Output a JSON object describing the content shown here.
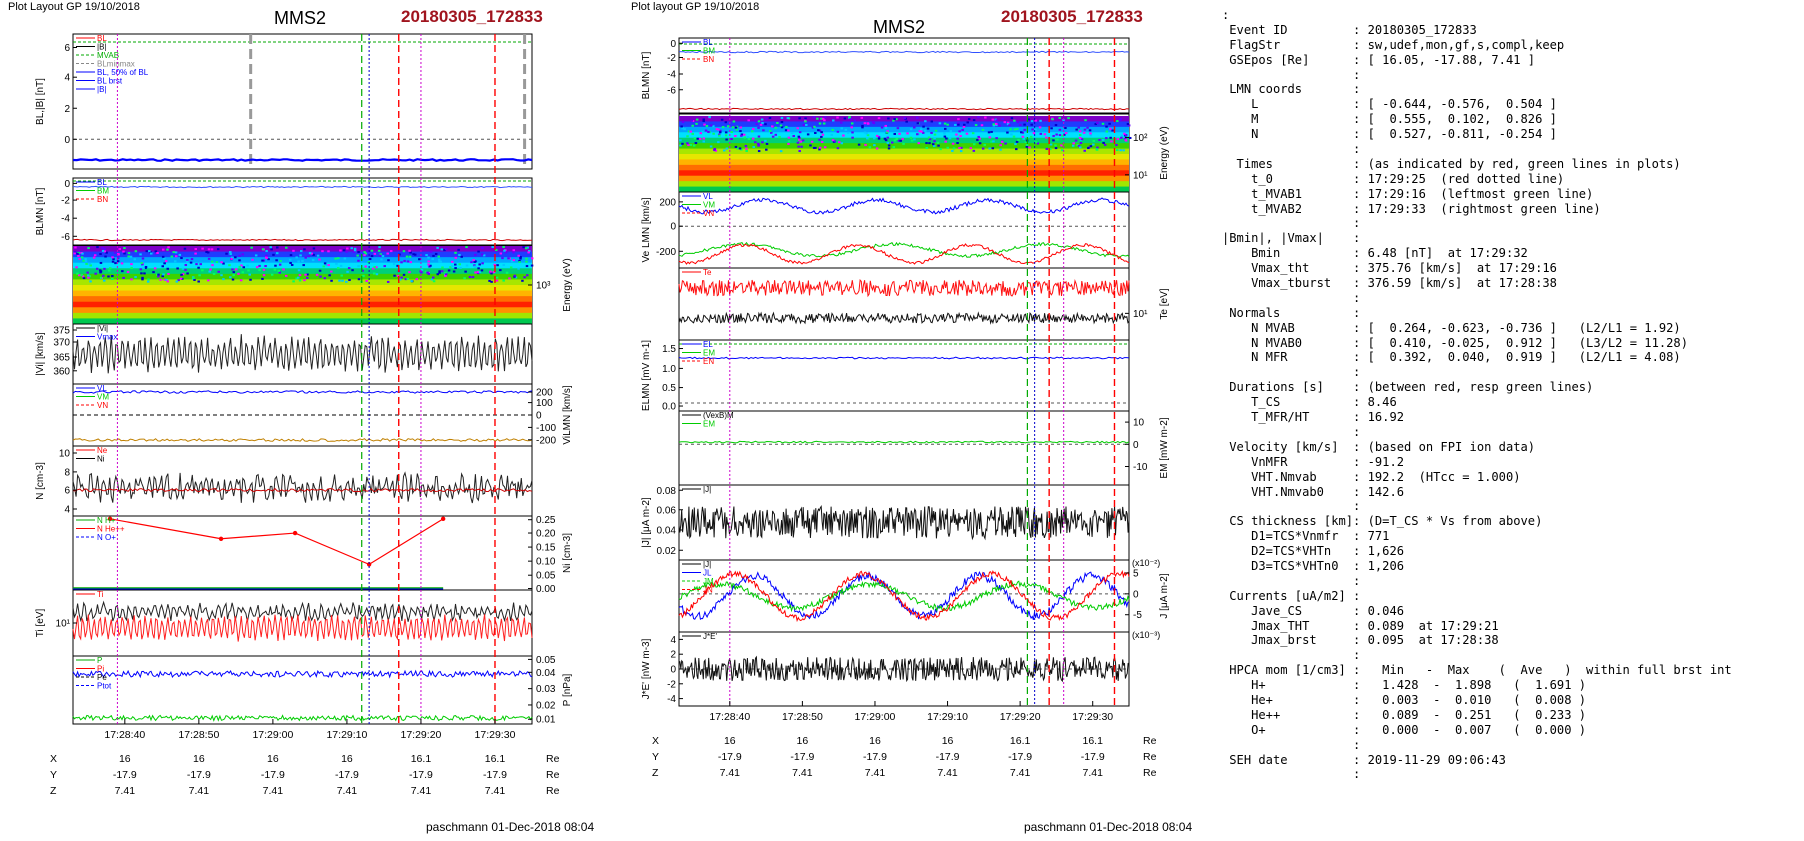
{
  "left": {
    "header": "Plot Layout GP 19/10/2018",
    "title": "MMS2",
    "event": "20180305_172833",
    "footer": "paschmann 01-Dec-2018 08:04",
    "time_ticks": [
      "17:28:40",
      "17:28:50",
      "17:29:00",
      "17:29:10",
      "17:29:20",
      "17:29:30"
    ],
    "pos_rows": [
      {
        "label": "X",
        "values": [
          "16",
          "16",
          "16",
          "16",
          "16.1",
          "16.1"
        ],
        "unit": "Re"
      },
      {
        "label": "Y",
        "values": [
          "-17.9",
          "-17.9",
          "-17.9",
          "-17.9",
          "-17.9",
          "-17.9"
        ],
        "unit": "Re"
      },
      {
        "label": "Z",
        "values": [
          "7.41",
          "7.41",
          "7.41",
          "7.41",
          "7.41",
          "7.41"
        ],
        "unit": "Re"
      }
    ]
  },
  "mid": {
    "header": "Plot layout GP 19/10/2018",
    "title": "MMS2",
    "event": "20180305_172833",
    "footer": "paschmann 01-Dec-2018 08:04",
    "time_ticks": [
      "17:28:40",
      "17:28:50",
      "17:29:00",
      "17:29:10",
      "17:29:20",
      "17:29:30"
    ],
    "pos_rows": [
      {
        "label": "X",
        "values": [
          "16",
          "16",
          "16",
          "16",
          "16.1",
          "16.1"
        ],
        "unit": "Re"
      },
      {
        "label": "Y",
        "values": [
          "-17.9",
          "-17.9",
          "-17.9",
          "-17.9",
          "-17.9",
          "-17.9"
        ],
        "unit": "Re"
      },
      {
        "label": "Z",
        "values": [
          "7.41",
          "7.41",
          "7.41",
          "7.41",
          "7.41",
          "7.41"
        ],
        "unit": "Re"
      }
    ]
  },
  "info_lines": [
    ":",
    " Event ID         : 20180305_172833",
    " FlagStr          : sw,udef,mon,gf,s,compl,keep",
    " GSEpos [Re]      : [ 16.05, -17.88, 7.41 ]",
    "                  :",
    " LMN coords       :",
    "    L             : [ -0.644, -0.576,  0.504 ]",
    "    M             : [  0.555,  0.102,  0.826 ]",
    "    N             : [  0.527, -0.811, -0.254 ]",
    "                  :",
    "  Times           : (as indicated by red, green lines in plots)",
    "    t_0           : 17:29:25  (red dotted line)",
    "    t_MVAB1       : 17:29:16  (leftmost green line)",
    "    t_MVAB2       : 17:29:33  (rightmost green line)",
    "                  :",
    "|Bmin|, |Vmax|    :",
    "    Bmin          : 6.48 [nT]  at 17:29:32",
    "    Vmax_tht      : 375.76 [km/s]  at 17:29:16",
    "    Vmax_tburst   : 376.59 [km/s]  at 17:28:38",
    "                  :",
    " Normals          :",
    "    N MVAB        : [  0.264, -0.623, -0.736 ]   (L2/L1 = 1.92)",
    "    N MVAB0       : [  0.410, -0.025,  0.912 ]   (L3/L2 = 11.28)",
    "    N MFR         : [  0.392,  0.040,  0.919 ]   (L2/L1 = 4.08)",
    "                  :",
    " Durations [s]    : (between red, resp green lines)",
    "    T_CS          : 8.46",
    "    T_MFR/HT      : 16.92",
    "                  :",
    " Velocity [km/s]  : (based on FPI ion data)",
    "    VnMFR         : -91.2",
    "    VHT.Nmvab     : 192.2  (HTcc = 1.000)",
    "    VHT.Nmvab0    : 142.6",
    "                  :",
    " CS thickness [km]: (D=T_CS * Vs from above)",
    "    D1=TCS*Vnmfr  : 771",
    "    D2=TCS*VHTn   : 1,626",
    "    D3=TCS*VHTn0  : 1,206",
    "                  :",
    " Currents [uA/m2] :",
    "    Jave_CS       : 0.046",
    "    Jmax_THT      : 0.089  at 17:29:21",
    "    Jmax_brst     : 0.095  at 17:28:38",
    "                  :",
    " HPCA mom [1/cm3] :   Min   -  Max    (  Ave   )  within full brst int",
    "    H+            :   1.428  -  1.898   (  1.691 )",
    "    He+           :   0.003  -  0.010   (  0.008 )",
    "    He++          :   0.089  -  0.251   (  0.233 )",
    "    O+            :   0.000  -  0.007   (  0.000 )",
    "                  :",
    " SEH date         : 2019-11-29 09:06:43",
    "                  :"
  ],
  "chart_data": [
    {
      "type": "line",
      "title": "MMS2",
      "x_range": [
        "17:28:33",
        "17:29:35"
      ],
      "panels": [
        {
          "ylabel": "BL,|B| [nT]",
          "ylim": [
            -1,
            6.5
          ],
          "ticks": [
            "6",
            "4",
            "2",
            "0"
          ],
          "legend": [
            "BL",
            "|B|",
            "MVAB",
            "BLminmax",
            "BL, 50% of BL",
            "BL brst",
            "|B|"
          ],
          "series": [
            {
              "name": "BL",
              "color": "#0000ff",
              "values": [
                -0.5,
                -0.6,
                -0.65,
                -0.7,
                -0.68,
                -0.6,
                -0.45,
                -0.3
              ]
            }
          ]
        },
        {
          "ylabel": "BLMN [nT]",
          "ylim": [
            -7,
            0.5
          ],
          "ticks": [
            "0",
            "-2",
            "-4",
            "-6"
          ],
          "legend": [
            "BL",
            "BM",
            "BN"
          ],
          "series": [
            {
              "name": "BL",
              "color": "#0000ff",
              "values": [
                -0.6,
                -0.7,
                -0.65,
                -0.7,
                -0.75,
                -0.6,
                -0.7,
                -0.65
              ]
            }
          ]
        },
        {
          "ylabel": "Energy (eV)",
          "type": "heatmap",
          "ticks": [
            "10³"
          ]
        },
        {
          "ylabel": "|Vi| [km/s]",
          "ylim": [
            357,
            377
          ],
          "ticks": [
            "375",
            "370",
            "365",
            "360"
          ],
          "legend": [
            "|Vi|",
            "Vmax"
          ]
        },
        {
          "ylabel": "ViLMN [km/s]",
          "ylim": [
            -210,
            240
          ],
          "ticks": [
            "200",
            "100",
            "0",
            "-100",
            "-200"
          ],
          "legend": [
            "VL",
            "VM",
            "VN"
          ]
        },
        {
          "ylabel": "N [cm-3]",
          "ylim": [
            3,
            11
          ],
          "ticks": [
            "10",
            "8",
            "6",
            "4"
          ],
          "legend": [
            "Ne",
            "Ni"
          ]
        },
        {
          "ylabel": "Ni [cm-3]",
          "ylim": [
            0,
            0.26
          ],
          "ticks": [
            "0.25",
            "0.20",
            "0.15",
            "0.10",
            "0.05",
            "0.00"
          ],
          "legend": [
            "N H+",
            "N He++",
            "N O+"
          ],
          "series": [
            {
              "name": "N He++",
              "color": "#ff0000",
              "x": [
                "17:28:38",
                "17:28:53",
                "17:29:03",
                "17:29:13",
                "17:29:23"
              ],
              "values": [
                0.25,
                0.18,
                0.2,
                0.09,
                0.25
              ]
            }
          ]
        },
        {
          "ylabel": "Ti [eV]",
          "ticks": [
            "10¹"
          ],
          "legend": [
            "Ti"
          ]
        },
        {
          "ylabel": "P [nPa]",
          "ylim": [
            0.005,
            0.052
          ],
          "ticks": [
            "0.05",
            "0.04",
            "0.03",
            "0.02",
            "0.01"
          ],
          "legend": [
            "P",
            "Pi",
            "Pe",
            "Ptot"
          ]
        }
      ]
    },
    {
      "type": "line",
      "title": "MMS2",
      "x_range": [
        "17:28:33",
        "17:29:35"
      ],
      "panels": [
        {
          "ylabel": "BLMN [nT]",
          "ylim": [
            -7,
            0.5
          ],
          "ticks": [
            "0",
            "-2",
            "-4",
            "-6"
          ],
          "legend": [
            "BL",
            "BM",
            "BN"
          ]
        },
        {
          "ylabel": "Energy (eV)",
          "type": "heatmap",
          "ticks": [
            "10²",
            "10¹"
          ]
        },
        {
          "ylabel": "Ve LMN [km/s]",
          "ylim": [
            -260,
            320
          ],
          "ticks": [
            "200",
            "0",
            "-200"
          ],
          "legend": [
            "VL",
            "VM",
            "VN"
          ]
        },
        {
          "ylabel": "Te [eV]",
          "ticks": [
            "10¹"
          ],
          "legend": [
            "Te"
          ]
        },
        {
          "ylabel": "ELMN [mV m-1]",
          "ylim": [
            -0.1,
            1.7
          ],
          "ticks": [
            "1.5",
            "1.0",
            "0.5",
            "0.0"
          ],
          "legend": [
            "EL",
            "EM",
            "EN"
          ]
        },
        {
          "ylabel": "EM [mW m-2]",
          "ylim": [
            -15,
            15
          ],
          "ticks": [
            "10",
            "0",
            "-10"
          ],
          "legend": [
            "(VexB)M",
            "EM"
          ]
        },
        {
          "ylabel": "|J| [μA m-2]",
          "ylim": [
            0.015,
            0.09
          ],
          "ticks": [
            "0.08",
            "0.06",
            "0.04",
            "0.02"
          ],
          "legend": [
            "|J|"
          ]
        },
        {
          "ylabel": "J [μA m-2]",
          "ylim": [
            -7,
            7
          ],
          "ticks": [
            "5",
            "0",
            "-5"
          ],
          "units_note": "(x10⁻²)",
          "legend": [
            "|J|",
            "JL",
            "JM",
            "JN"
          ]
        },
        {
          "ylabel": "J*E' [nW m-3]",
          "ylim": [
            -5,
            5
          ],
          "ticks": [
            "4",
            "2",
            "0",
            "-2",
            "-4"
          ],
          "units_note": "(x10⁻³)",
          "legend": [
            "J*E'"
          ]
        }
      ]
    }
  ]
}
